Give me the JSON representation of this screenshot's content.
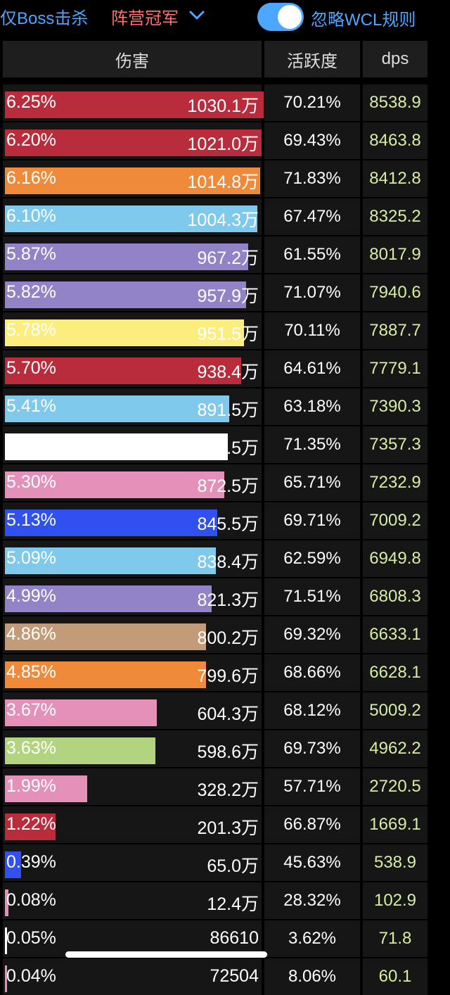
{
  "filters": {
    "boss_only": "仅Boss击杀",
    "faction": "阵营冠军",
    "ignore_wcl": "忽略WCL规则",
    "ignore_wcl_on": true
  },
  "table": {
    "headers": [
      "伤害",
      "活跃度",
      "dps"
    ],
    "rows": [
      {
        "pct": "6.25%",
        "damage": "1030.1万",
        "activity": "70.21%",
        "dps": "8538.9",
        "color": "#b82c3c",
        "fill": 6.25
      },
      {
        "pct": "6.20%",
        "damage": "1021.0万",
        "activity": "69.43%",
        "dps": "8463.8",
        "color": "#b82c3c",
        "fill": 6.2
      },
      {
        "pct": "6.16%",
        "damage": "1014.8万",
        "activity": "71.83%",
        "dps": "8412.8",
        "color": "#ee8a3a",
        "fill": 6.16
      },
      {
        "pct": "6.10%",
        "damage": "1004.3万",
        "activity": "67.47%",
        "dps": "8325.2",
        "color": "#7fc9ec",
        "fill": 6.1
      },
      {
        "pct": "5.87%",
        "damage": "967.2万",
        "activity": "61.55%",
        "dps": "8017.9",
        "color": "#9282c8",
        "fill": 5.87
      },
      {
        "pct": "5.82%",
        "damage": "957.9万",
        "activity": "71.07%",
        "dps": "7940.6",
        "color": "#9282c8",
        "fill": 5.82
      },
      {
        "pct": "5.78%",
        "damage": "951.5万",
        "activity": "70.11%",
        "dps": "7887.7",
        "color": "#fbee7e",
        "fill": 5.78
      },
      {
        "pct": "5.70%",
        "damage": "938.4万",
        "activity": "64.61%",
        "dps": "7779.1",
        "color": "#b82c3c",
        "fill": 5.7
      },
      {
        "pct": "5.41%",
        "damage": "891.5万",
        "activity": "63.18%",
        "dps": "7390.3",
        "color": "#7fc9ec",
        "fill": 5.41
      },
      {
        "pct": "5.39%",
        "damage": "887.5万",
        "activity": "71.35%",
        "dps": "7357.3",
        "color": "#ffffff",
        "fill": 5.39
      },
      {
        "pct": "5.30%",
        "damage": "872.5万",
        "activity": "65.71%",
        "dps": "7232.9",
        "color": "#e490b8",
        "fill": 5.3
      },
      {
        "pct": "5.13%",
        "damage": "845.5万",
        "activity": "69.71%",
        "dps": "7009.2",
        "color": "#3050f0",
        "fill": 5.13
      },
      {
        "pct": "5.09%",
        "damage": "838.4万",
        "activity": "62.59%",
        "dps": "6949.8",
        "color": "#7fc9ec",
        "fill": 5.09
      },
      {
        "pct": "4.99%",
        "damage": "821.3万",
        "activity": "71.51%",
        "dps": "6808.3",
        "color": "#9282c8",
        "fill": 4.99
      },
      {
        "pct": "4.86%",
        "damage": "800.2万",
        "activity": "69.32%",
        "dps": "6633.1",
        "color": "#c29c78",
        "fill": 4.86
      },
      {
        "pct": "4.85%",
        "damage": "799.6万",
        "activity": "68.66%",
        "dps": "6628.1",
        "color": "#ee8a3a",
        "fill": 4.85
      },
      {
        "pct": "3.67%",
        "damage": "604.3万",
        "activity": "68.12%",
        "dps": "5009.2",
        "color": "#e490b8",
        "fill": 3.67
      },
      {
        "pct": "3.63%",
        "damage": "598.6万",
        "activity": "69.73%",
        "dps": "4962.2",
        "color": "#b2d480",
        "fill": 3.63
      },
      {
        "pct": "1.99%",
        "damage": "328.2万",
        "activity": "57.71%",
        "dps": "2720.5",
        "color": "#e490b8",
        "fill": 1.99
      },
      {
        "pct": "1.22%",
        "damage": "201.3万",
        "activity": "66.87%",
        "dps": "1669.1",
        "color": "#b82c3c",
        "fill": 1.22
      },
      {
        "pct": "0.39%",
        "damage": "65.0万",
        "activity": "45.63%",
        "dps": "538.9",
        "color": "#3050f0",
        "fill": 0.39
      },
      {
        "pct": "0.08%",
        "damage": "12.4万",
        "activity": "28.32%",
        "dps": "102.9",
        "color": "#e490b8",
        "fill": 0.08
      },
      {
        "pct": "0.05%",
        "damage": "86610",
        "activity": "3.62%",
        "dps": "71.8",
        "color": "#ffffff",
        "fill": 0.05
      },
      {
        "pct": "0.04%",
        "damage": "72504",
        "activity": "8.06%",
        "dps": "60.1",
        "color": "#e490b8",
        "fill": 0.04
      }
    ]
  }
}
